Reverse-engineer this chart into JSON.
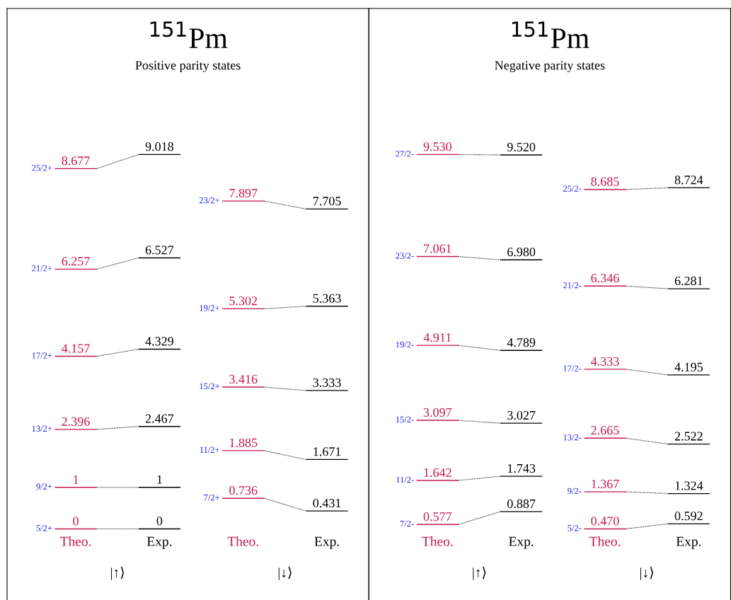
{
  "chart_data": [
    {
      "type": "other",
      "title": "$^{151}$Pm",
      "subtitle": "Positive parity states",
      "categories": [
        "Theo.",
        "Exp.",
        "Theo.",
        "Exp."
      ],
      "annotations": [
        "|↑⟩",
        "|↓⟩"
      ],
      "series": [
        {
          "name": "5/2+",
          "values": [
            0,
            0,
            null,
            null
          ],
          "value_labels": [
            "0",
            "0",
            null,
            null
          ],
          "colors": [
            "#c8164c",
            "#000000",
            null,
            null
          ]
        },
        {
          "name": "9/2+",
          "values": [
            1,
            1,
            null,
            null
          ],
          "value_labels": [
            "1",
            "1",
            null,
            null
          ],
          "colors": [
            "#c8164c",
            "#000000",
            null,
            null
          ]
        },
        {
          "name": "13/2+",
          "values": [
            2.396,
            2.467,
            null,
            null
          ],
          "value_labels": [
            "2.396",
            "2.467",
            null,
            null
          ],
          "colors": [
            "#c8164c",
            "#000000",
            null,
            null
          ]
        },
        {
          "name": "17/2+",
          "values": [
            4.157,
            4.329,
            null,
            null
          ],
          "value_labels": [
            "4.157",
            "4.329",
            null,
            null
          ],
          "colors": [
            "#c8164c",
            "#000000",
            null,
            null
          ]
        },
        {
          "name": "21/2+",
          "values": [
            6.257,
            6.527,
            null,
            null
          ],
          "value_labels": [
            "6.257",
            "6.527",
            null,
            null
          ],
          "colors": [
            "#c8164c",
            "#000000",
            null,
            null
          ]
        },
        {
          "name": "25/2+",
          "values": [
            8.677,
            9.018,
            null,
            null
          ],
          "value_labels": [
            "8.677",
            "9.018",
            null,
            null
          ],
          "colors": [
            "#c8164c",
            "#000000",
            null,
            null
          ]
        },
        {
          "name": "7/2+",
          "values": [
            null,
            null,
            0.736,
            0.431
          ],
          "value_labels": [
            null,
            null,
            "0.736",
            "0.431"
          ],
          "colors": [
            null,
            null,
            "#c8164c",
            "#000000"
          ]
        },
        {
          "name": "11/2+",
          "values": [
            null,
            null,
            1.885,
            1.671
          ],
          "value_labels": [
            null,
            null,
            "1.885",
            "1.671"
          ],
          "colors": [
            null,
            null,
            "#c8164c",
            "#000000"
          ]
        },
        {
          "name": "15/2+",
          "values": [
            null,
            null,
            3.416,
            3.333
          ],
          "value_labels": [
            null,
            null,
            "3.416",
            "3.333"
          ],
          "colors": [
            null,
            null,
            "#c8164c",
            "#000000"
          ]
        },
        {
          "name": "19/2+",
          "values": [
            null,
            null,
            5.302,
            5.363
          ],
          "value_labels": [
            null,
            null,
            "5.302",
            "5.363"
          ],
          "colors": [
            null,
            null,
            "#c8164c",
            "#000000"
          ]
        },
        {
          "name": "23/2+",
          "values": [
            null,
            null,
            7.897,
            7.705
          ],
          "value_labels": [
            null,
            null,
            "7.897",
            "7.705"
          ],
          "colors": [
            null,
            null,
            "#c8164c",
            "#000000"
          ]
        }
      ]
    },
    {
      "type": "other",
      "title": "$^{151}$Pm",
      "subtitle": "Negative parity states",
      "categories": [
        "Theo.",
        "Exp.",
        "Theo.",
        "Exp."
      ],
      "annotations": [
        "|↑⟩",
        "|↓⟩"
      ],
      "series": [
        {
          "name": "7/2-",
          "values": [
            0.577,
            0.887,
            null,
            null
          ],
          "value_labels": [
            "0.577",
            "0.887",
            null,
            null
          ],
          "colors": [
            "#c8164c",
            "#000000",
            null,
            null
          ]
        },
        {
          "name": "11/2-",
          "values": [
            1.642,
            1.743,
            null,
            null
          ],
          "value_labels": [
            "1.642",
            "1.743",
            null,
            null
          ],
          "colors": [
            "#c8164c",
            "#000000",
            null,
            null
          ]
        },
        {
          "name": "15/2-",
          "values": [
            3.097,
            3.027,
            null,
            null
          ],
          "value_labels": [
            "3.097",
            "3.027",
            null,
            null
          ],
          "colors": [
            "#c8164c",
            "#000000",
            null,
            null
          ]
        },
        {
          "name": "19/2-",
          "values": [
            4.911,
            4.789,
            null,
            null
          ],
          "value_labels": [
            "4.911",
            "4.789",
            null,
            null
          ],
          "colors": [
            "#c8164c",
            "#000000",
            null,
            null
          ]
        },
        {
          "name": "23/2-",
          "values": [
            7.061,
            6.98,
            null,
            null
          ],
          "value_labels": [
            "7.061",
            "6.980",
            null,
            null
          ],
          "colors": [
            "#c8164c",
            "#000000",
            null,
            null
          ]
        },
        {
          "name": "27/2-",
          "values": [
            9.53,
            9.52,
            null,
            null
          ],
          "value_labels": [
            "9.530",
            "9.520",
            null,
            null
          ],
          "colors": [
            "#c8164c",
            "#000000",
            null,
            null
          ]
        },
        {
          "name": "5/2-",
          "values": [
            null,
            null,
            0.47,
            0.592
          ],
          "value_labels": [
            null,
            null,
            "0.470",
            "0.592"
          ],
          "colors": [
            null,
            null,
            "#c8164c",
            "#000000"
          ]
        },
        {
          "name": "9/2-",
          "values": [
            null,
            null,
            1.367,
            1.324
          ],
          "value_labels": [
            null,
            null,
            "1.367",
            "1.324"
          ],
          "colors": [
            null,
            null,
            "#c8164c",
            "#000000"
          ]
        },
        {
          "name": "13/2-",
          "values": [
            null,
            null,
            2.665,
            2.522
          ],
          "value_labels": [
            null,
            null,
            "2.665",
            "2.522"
          ],
          "colors": [
            null,
            null,
            "#c8164c",
            "#000000"
          ]
        },
        {
          "name": "17/2-",
          "values": [
            null,
            null,
            4.333,
            4.195
          ],
          "value_labels": [
            null,
            null,
            "4.333",
            "4.195"
          ],
          "colors": [
            null,
            null,
            "#c8164c",
            "#000000"
          ]
        },
        {
          "name": "21/2-",
          "values": [
            null,
            null,
            6.346,
            6.281
          ],
          "value_labels": [
            null,
            null,
            "6.346",
            "6.281"
          ],
          "colors": [
            null,
            null,
            "#c8164c",
            "#000000"
          ]
        },
        {
          "name": "25/2-",
          "values": [
            null,
            null,
            8.685,
            8.724
          ],
          "value_labels": [
            null,
            null,
            "8.685",
            "8.724"
          ],
          "colors": [
            null,
            null,
            "#c8164c",
            "#000000"
          ]
        }
      ]
    }
  ]
}
